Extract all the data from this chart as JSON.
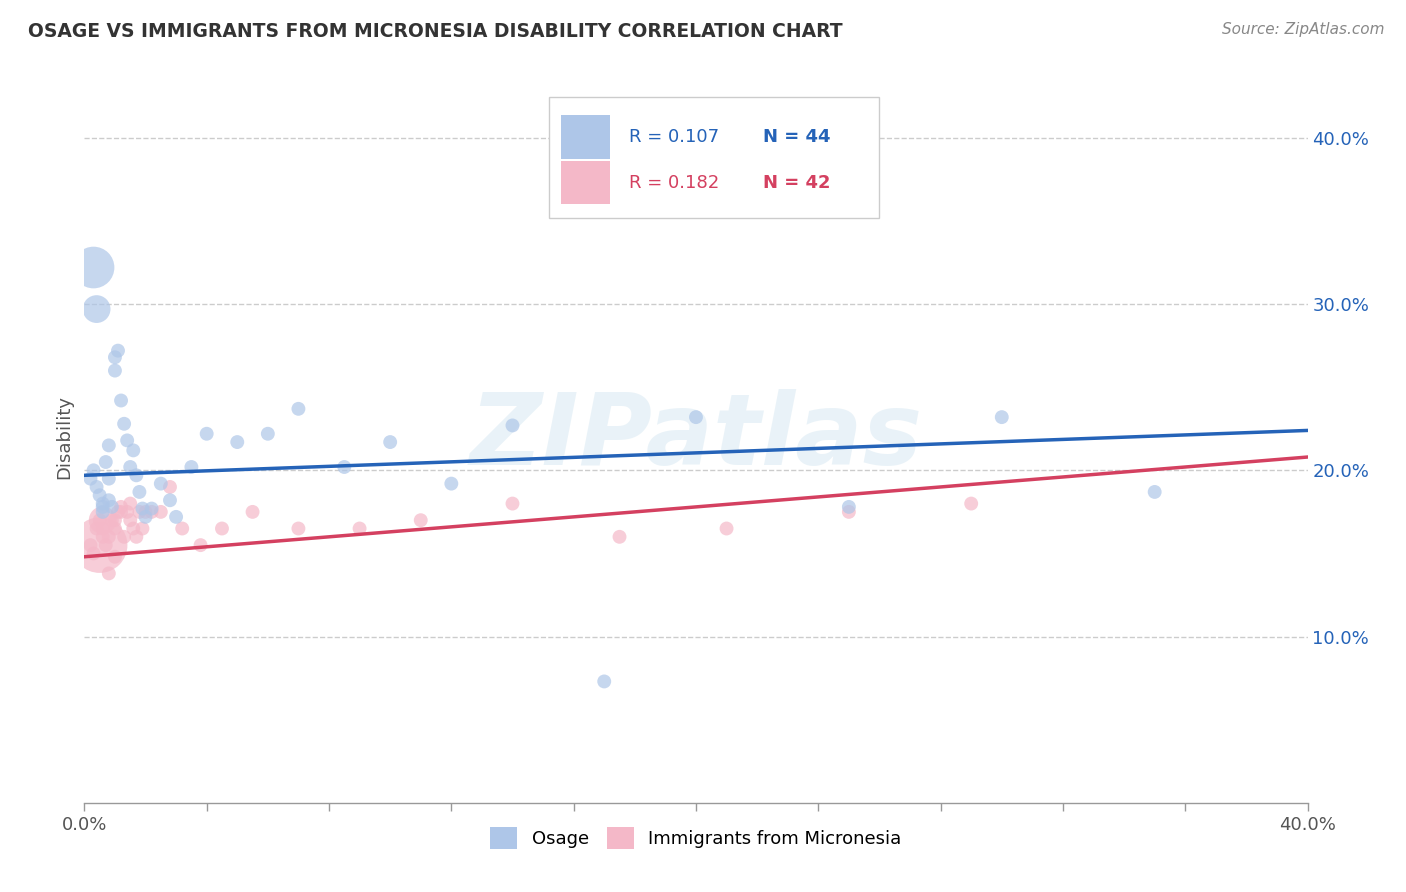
{
  "title": "OSAGE VS IMMIGRANTS FROM MICRONESIA DISABILITY CORRELATION CHART",
  "source": "Source: ZipAtlas.com",
  "ylabel": "Disability",
  "xlim": [
    0.0,
    0.4
  ],
  "ylim": [
    0.0,
    0.44
  ],
  "yticks": [
    0.1,
    0.2,
    0.3,
    0.4
  ],
  "ytick_labels": [
    "10.0%",
    "20.0%",
    "30.0%",
    "40.0%"
  ],
  "xticks": [
    0.0,
    0.04,
    0.08,
    0.12,
    0.16,
    0.2,
    0.24,
    0.28,
    0.32,
    0.36,
    0.4
  ],
  "xtick_labels_show": [
    "0.0%",
    "",
    "",
    "",
    "",
    "",
    "",
    "",
    "",
    "",
    "40.0%"
  ],
  "grid_color": "#cccccc",
  "series1_color": "#aec6e8",
  "series2_color": "#f4b8c8",
  "line1_color": "#2563b8",
  "line2_color": "#d44060",
  "legend_text_color1": "#2563b8",
  "legend_text_color2": "#d44060",
  "watermark": "ZIPatlas",
  "osage_x": [
    0.002,
    0.003,
    0.004,
    0.005,
    0.006,
    0.006,
    0.007,
    0.008,
    0.008,
    0.009,
    0.01,
    0.01,
    0.011,
    0.012,
    0.013,
    0.014,
    0.015,
    0.016,
    0.017,
    0.018,
    0.019,
    0.02,
    0.022,
    0.025,
    0.028,
    0.03,
    0.035,
    0.04,
    0.05,
    0.06,
    0.07,
    0.085,
    0.1,
    0.12,
    0.14,
    0.17,
    0.2,
    0.25,
    0.3,
    0.35,
    0.003,
    0.004,
    0.006,
    0.008
  ],
  "osage_y": [
    0.195,
    0.2,
    0.19,
    0.185,
    0.175,
    0.18,
    0.205,
    0.195,
    0.215,
    0.178,
    0.26,
    0.268,
    0.272,
    0.242,
    0.228,
    0.218,
    0.202,
    0.212,
    0.197,
    0.187,
    0.177,
    0.172,
    0.177,
    0.192,
    0.182,
    0.172,
    0.202,
    0.222,
    0.217,
    0.222,
    0.237,
    0.202,
    0.217,
    0.192,
    0.227,
    0.073,
    0.232,
    0.178,
    0.232,
    0.187,
    0.322,
    0.297,
    0.178,
    0.182
  ],
  "osage_size": [
    100,
    100,
    100,
    100,
    100,
    100,
    100,
    100,
    100,
    100,
    100,
    100,
    100,
    100,
    100,
    100,
    100,
    100,
    100,
    100,
    100,
    100,
    100,
    100,
    100,
    100,
    100,
    100,
    100,
    100,
    100,
    100,
    100,
    100,
    100,
    100,
    100,
    100,
    100,
    100,
    900,
    400,
    100,
    100
  ],
  "micro_x": [
    0.002,
    0.003,
    0.004,
    0.005,
    0.006,
    0.006,
    0.007,
    0.008,
    0.009,
    0.01,
    0.01,
    0.011,
    0.012,
    0.013,
    0.014,
    0.015,
    0.016,
    0.017,
    0.018,
    0.019,
    0.02,
    0.022,
    0.025,
    0.028,
    0.032,
    0.038,
    0.045,
    0.055,
    0.07,
    0.09,
    0.11,
    0.14,
    0.175,
    0.21,
    0.25,
    0.29,
    0.005,
    0.006,
    0.008,
    0.01,
    0.012,
    0.015
  ],
  "micro_y": [
    0.155,
    0.15,
    0.165,
    0.17,
    0.16,
    0.165,
    0.155,
    0.16,
    0.17,
    0.165,
    0.17,
    0.175,
    0.175,
    0.16,
    0.175,
    0.17,
    0.165,
    0.16,
    0.175,
    0.165,
    0.175,
    0.175,
    0.175,
    0.19,
    0.165,
    0.155,
    0.165,
    0.175,
    0.165,
    0.165,
    0.17,
    0.18,
    0.16,
    0.165,
    0.175,
    0.18,
    0.155,
    0.17,
    0.138,
    0.148,
    0.178,
    0.18
  ],
  "micro_size": [
    100,
    100,
    100,
    100,
    100,
    100,
    100,
    100,
    100,
    100,
    100,
    100,
    100,
    100,
    100,
    100,
    100,
    100,
    100,
    100,
    100,
    100,
    100,
    100,
    100,
    100,
    100,
    100,
    100,
    100,
    100,
    100,
    100,
    100,
    100,
    100,
    1600,
    400,
    100,
    100,
    100,
    100
  ],
  "line1_x0": 0.0,
  "line1_y0": 0.197,
  "line1_x1": 0.4,
  "line1_y1": 0.224,
  "line2_x0": 0.0,
  "line2_y0": 0.148,
  "line2_x1": 0.4,
  "line2_y1": 0.208
}
